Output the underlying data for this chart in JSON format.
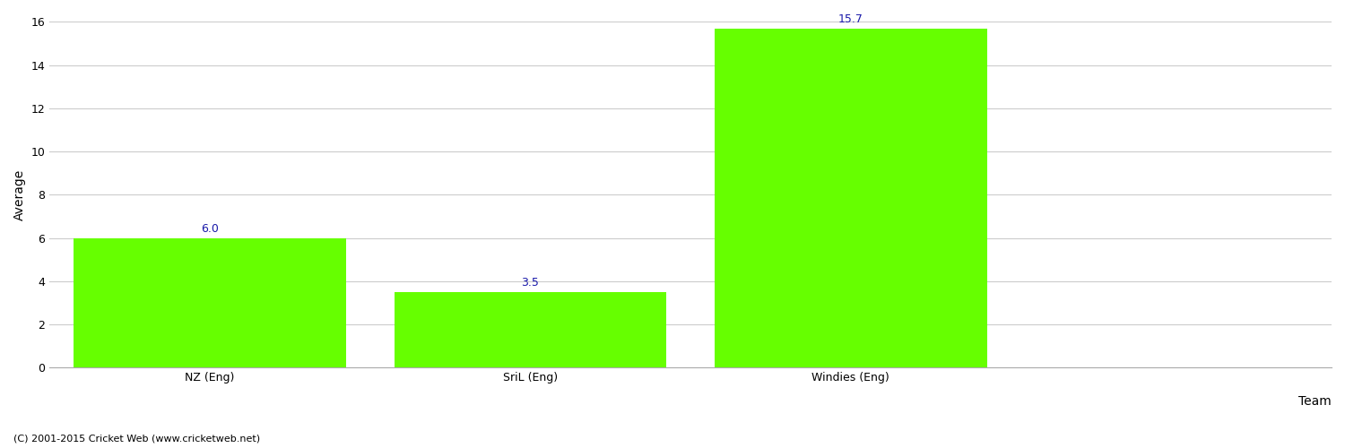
{
  "categories": [
    "NZ (Eng)",
    "SriL (Eng)",
    "Windies (Eng)"
  ],
  "values": [
    6.0,
    3.5,
    15.7
  ],
  "bar_color": "#66ff00",
  "bar_edge_color": "#66ff00",
  "ylabel": "Average",
  "xlabel": "Team",
  "ylim": [
    0,
    16
  ],
  "yticks": [
    0,
    2,
    4,
    6,
    8,
    10,
    12,
    14,
    16
  ],
  "annotation_color": "#1a1aaa",
  "annotation_fontsize": 9,
  "grid_color": "#cccccc",
  "background_color": "#ffffff",
  "footer_text": "(C) 2001-2015 Cricket Web (www.cricketweb.net)",
  "footer_fontsize": 8,
  "footer_color": "#000000",
  "axis_label_fontsize": 10,
  "tick_fontsize": 9,
  "bar_width": 0.85,
  "xlim": [
    -0.5,
    3.5
  ]
}
